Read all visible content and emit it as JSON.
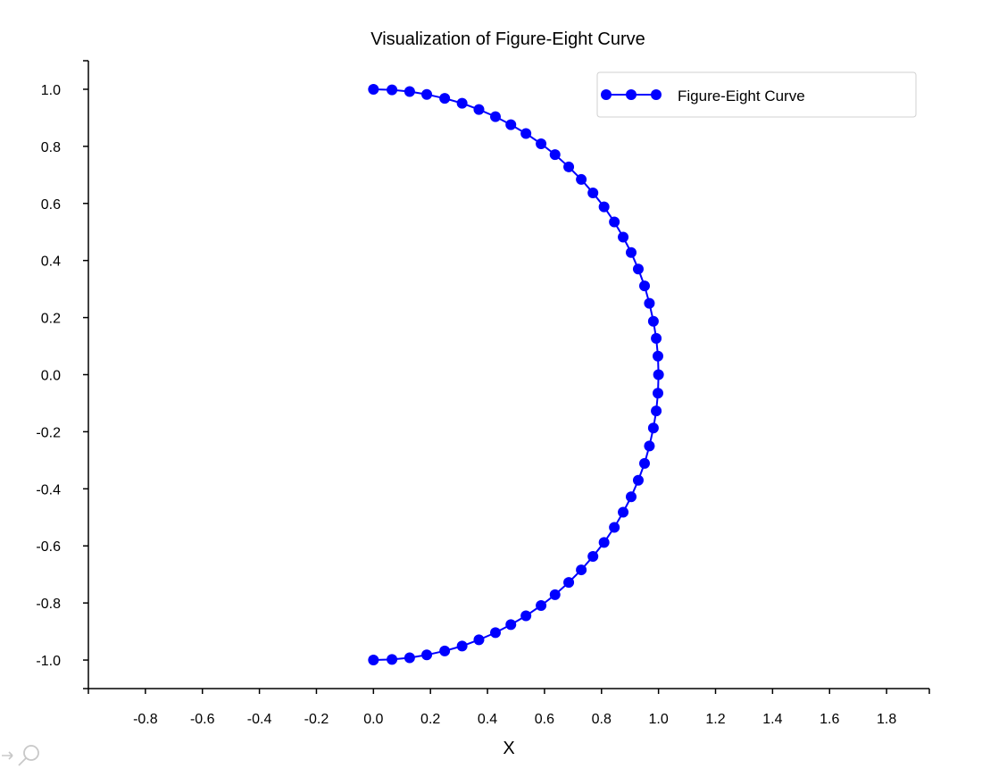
{
  "chart_data": {
    "type": "line",
    "title": "Visualization of Figure-Eight Curve",
    "xlabel": "X",
    "ylabel": "",
    "xlim": [
      -1.0,
      1.95
    ],
    "ylim": [
      -1.1,
      1.1
    ],
    "xticks": [
      -0.8,
      -0.6,
      -0.4,
      -0.2,
      0.0,
      0.2,
      0.4,
      0.6,
      0.8,
      1.0,
      1.2,
      1.4,
      1.6,
      1.8
    ],
    "xtick_labels": [
      "-0.8",
      "-0.6",
      "-0.4",
      "-0.2",
      "0.0",
      "0.2",
      "0.4",
      "0.6",
      "0.8",
      "1.0",
      "1.2",
      "1.4",
      "1.6",
      "1.8"
    ],
    "yticks": [
      -1.0,
      -0.8,
      -0.6,
      -0.4,
      -0.2,
      0.0,
      0.2,
      0.4,
      0.6,
      0.8,
      1.0
    ],
    "ytick_labels": [
      "-1.0",
      "-0.8",
      "-0.6",
      "-0.4",
      "-0.2",
      "0.0",
      "0.2",
      "0.4",
      "0.6",
      "0.8",
      "1.0"
    ],
    "grid": false,
    "legend": {
      "position": "top-right"
    },
    "series": [
      {
        "name": "Figure-Eight Curve",
        "color": "#0000ff",
        "marker": "circle",
        "points": [
          [
            0.0,
            1.0
          ],
          [
            0.065,
            0.998
          ],
          [
            0.127,
            0.992
          ],
          [
            0.187,
            0.982
          ],
          [
            0.25,
            0.968
          ],
          [
            0.311,
            0.951
          ],
          [
            0.37,
            0.929
          ],
          [
            0.428,
            0.904
          ],
          [
            0.482,
            0.876
          ],
          [
            0.535,
            0.845
          ],
          [
            0.588,
            0.809
          ],
          [
            0.637,
            0.771
          ],
          [
            0.685,
            0.728
          ],
          [
            0.729,
            0.684
          ],
          [
            0.77,
            0.637
          ],
          [
            0.809,
            0.588
          ],
          [
            0.845,
            0.535
          ],
          [
            0.876,
            0.482
          ],
          [
            0.904,
            0.428
          ],
          [
            0.929,
            0.37
          ],
          [
            0.951,
            0.311
          ],
          [
            0.968,
            0.25
          ],
          [
            0.982,
            0.187
          ],
          [
            0.992,
            0.127
          ],
          [
            0.998,
            0.065
          ],
          [
            1.0,
            0.0
          ],
          [
            0.998,
            -0.065
          ],
          [
            0.992,
            -0.127
          ],
          [
            0.982,
            -0.187
          ],
          [
            0.968,
            -0.25
          ],
          [
            0.951,
            -0.311
          ],
          [
            0.929,
            -0.37
          ],
          [
            0.904,
            -0.428
          ],
          [
            0.876,
            -0.482
          ],
          [
            0.845,
            -0.535
          ],
          [
            0.809,
            -0.588
          ],
          [
            0.77,
            -0.637
          ],
          [
            0.729,
            -0.684
          ],
          [
            0.685,
            -0.728
          ],
          [
            0.637,
            -0.771
          ],
          [
            0.588,
            -0.809
          ],
          [
            0.535,
            -0.845
          ],
          [
            0.482,
            -0.876
          ],
          [
            0.428,
            -0.904
          ],
          [
            0.37,
            -0.929
          ],
          [
            0.311,
            -0.951
          ],
          [
            0.25,
            -0.968
          ],
          [
            0.187,
            -0.982
          ],
          [
            0.127,
            -0.992
          ],
          [
            0.065,
            -0.998
          ],
          [
            0.0,
            -1.0
          ]
        ]
      }
    ]
  },
  "toolbar": {
    "icons": [
      "pan-icon",
      "zoom-icon"
    ]
  }
}
